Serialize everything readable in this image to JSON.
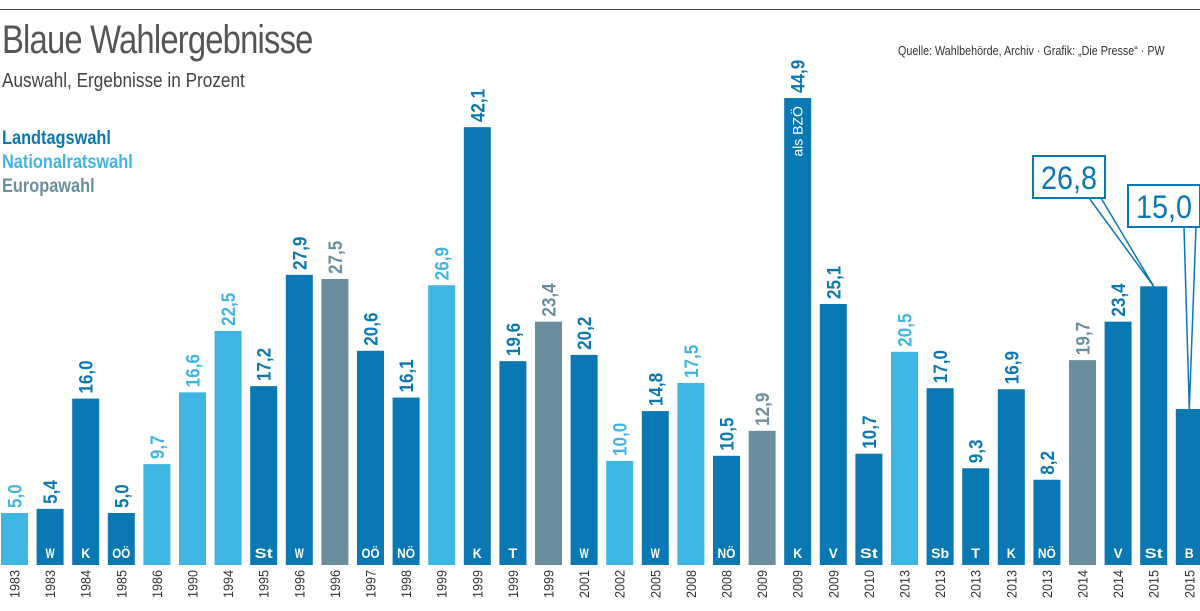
{
  "header": {
    "title": "Blaue Wahlergebnisse",
    "subtitle": "Auswahl, Ergebnisse in Prozent",
    "source": "Quelle: Wahlbehörde, Archiv · Grafik: „Die Presse“ · PW"
  },
  "legend": {
    "landtagswahl": "Landtagswahl",
    "nationalratswahl": "Nationalratswahl",
    "europawahl": "Europawahl"
  },
  "colors": {
    "landtagswahl": "#0a78b3",
    "nationalratswahl": "#3fb5e3",
    "europawahl": "#6b8e9e"
  },
  "chart_data": {
    "type": "bar",
    "title": "Blaue Wahlergebnisse",
    "subtitle": "Auswahl, Ergebnisse in Prozent",
    "ylim": [
      0,
      45
    ],
    "grid": false,
    "legend_position": "top-left",
    "categories": [
      "1983",
      "1983",
      "1984",
      "1985",
      "1986",
      "1990",
      "1994",
      "1995",
      "1996",
      "1996",
      "1997",
      "1998",
      "1999",
      "1999",
      "1999",
      "1999",
      "2001",
      "2002",
      "2005",
      "2008",
      "2008",
      "2009",
      "2009",
      "2009",
      "2010",
      "2013",
      "2013",
      "2013",
      "2013",
      "2013",
      "2014",
      "2014",
      "2015",
      "2015"
    ],
    "values": [
      5.0,
      5.4,
      16.0,
      5.0,
      9.7,
      16.6,
      22.5,
      17.2,
      27.9,
      27.5,
      20.6,
      16.1,
      26.9,
      42.1,
      19.6,
      23.4,
      20.2,
      10.0,
      14.8,
      17.5,
      10.5,
      12.9,
      44.9,
      25.1,
      10.7,
      20.5,
      17.0,
      9.3,
      16.9,
      8.2,
      19.7,
      23.4,
      26.8,
      15.0
    ],
    "labels": [
      "5,0",
      "5,4",
      "16,0",
      "5,0",
      "9,7",
      "16,6",
      "22,5",
      "17,2",
      "27,9",
      "27,5",
      "20,6",
      "16,1",
      "26,9",
      "42,1",
      "19,6",
      "23,4",
      "20,2",
      "10,0",
      "14,8",
      "17,5",
      "10,5",
      "12,9",
      "44,9",
      "25,1",
      "10,7",
      "20,5",
      "17,0",
      "9,3",
      "16,9",
      "8,2",
      "19,7",
      "23,4",
      "26,8",
      "15,0"
    ],
    "types": [
      "N",
      "L",
      "L",
      "L",
      "N",
      "N",
      "N",
      "L",
      "L",
      "E",
      "L",
      "L",
      "N",
      "L",
      "L",
      "E",
      "L",
      "N",
      "L",
      "N",
      "L",
      "E",
      "L",
      "L",
      "L",
      "N",
      "L",
      "L",
      "L",
      "L",
      "E",
      "L",
      "L",
      "L"
    ],
    "states": [
      "",
      "W",
      "K",
      "OÖ",
      "",
      "",
      "",
      "St",
      "W",
      "",
      "OÖ",
      "NÖ",
      "",
      "K",
      "T",
      "",
      "W",
      "",
      "W",
      "",
      "NÖ",
      "",
      "K",
      "V",
      "St",
      "",
      "Sb",
      "T",
      "K",
      "NÖ",
      "",
      "V",
      "St",
      "B"
    ],
    "annotations": [
      {
        "bar": 22,
        "text": "als BZÖ"
      },
      {
        "bar": 32,
        "text": "26,8",
        "boxed": true
      },
      {
        "bar": 33,
        "text": "15,0",
        "boxed": true
      }
    ]
  }
}
